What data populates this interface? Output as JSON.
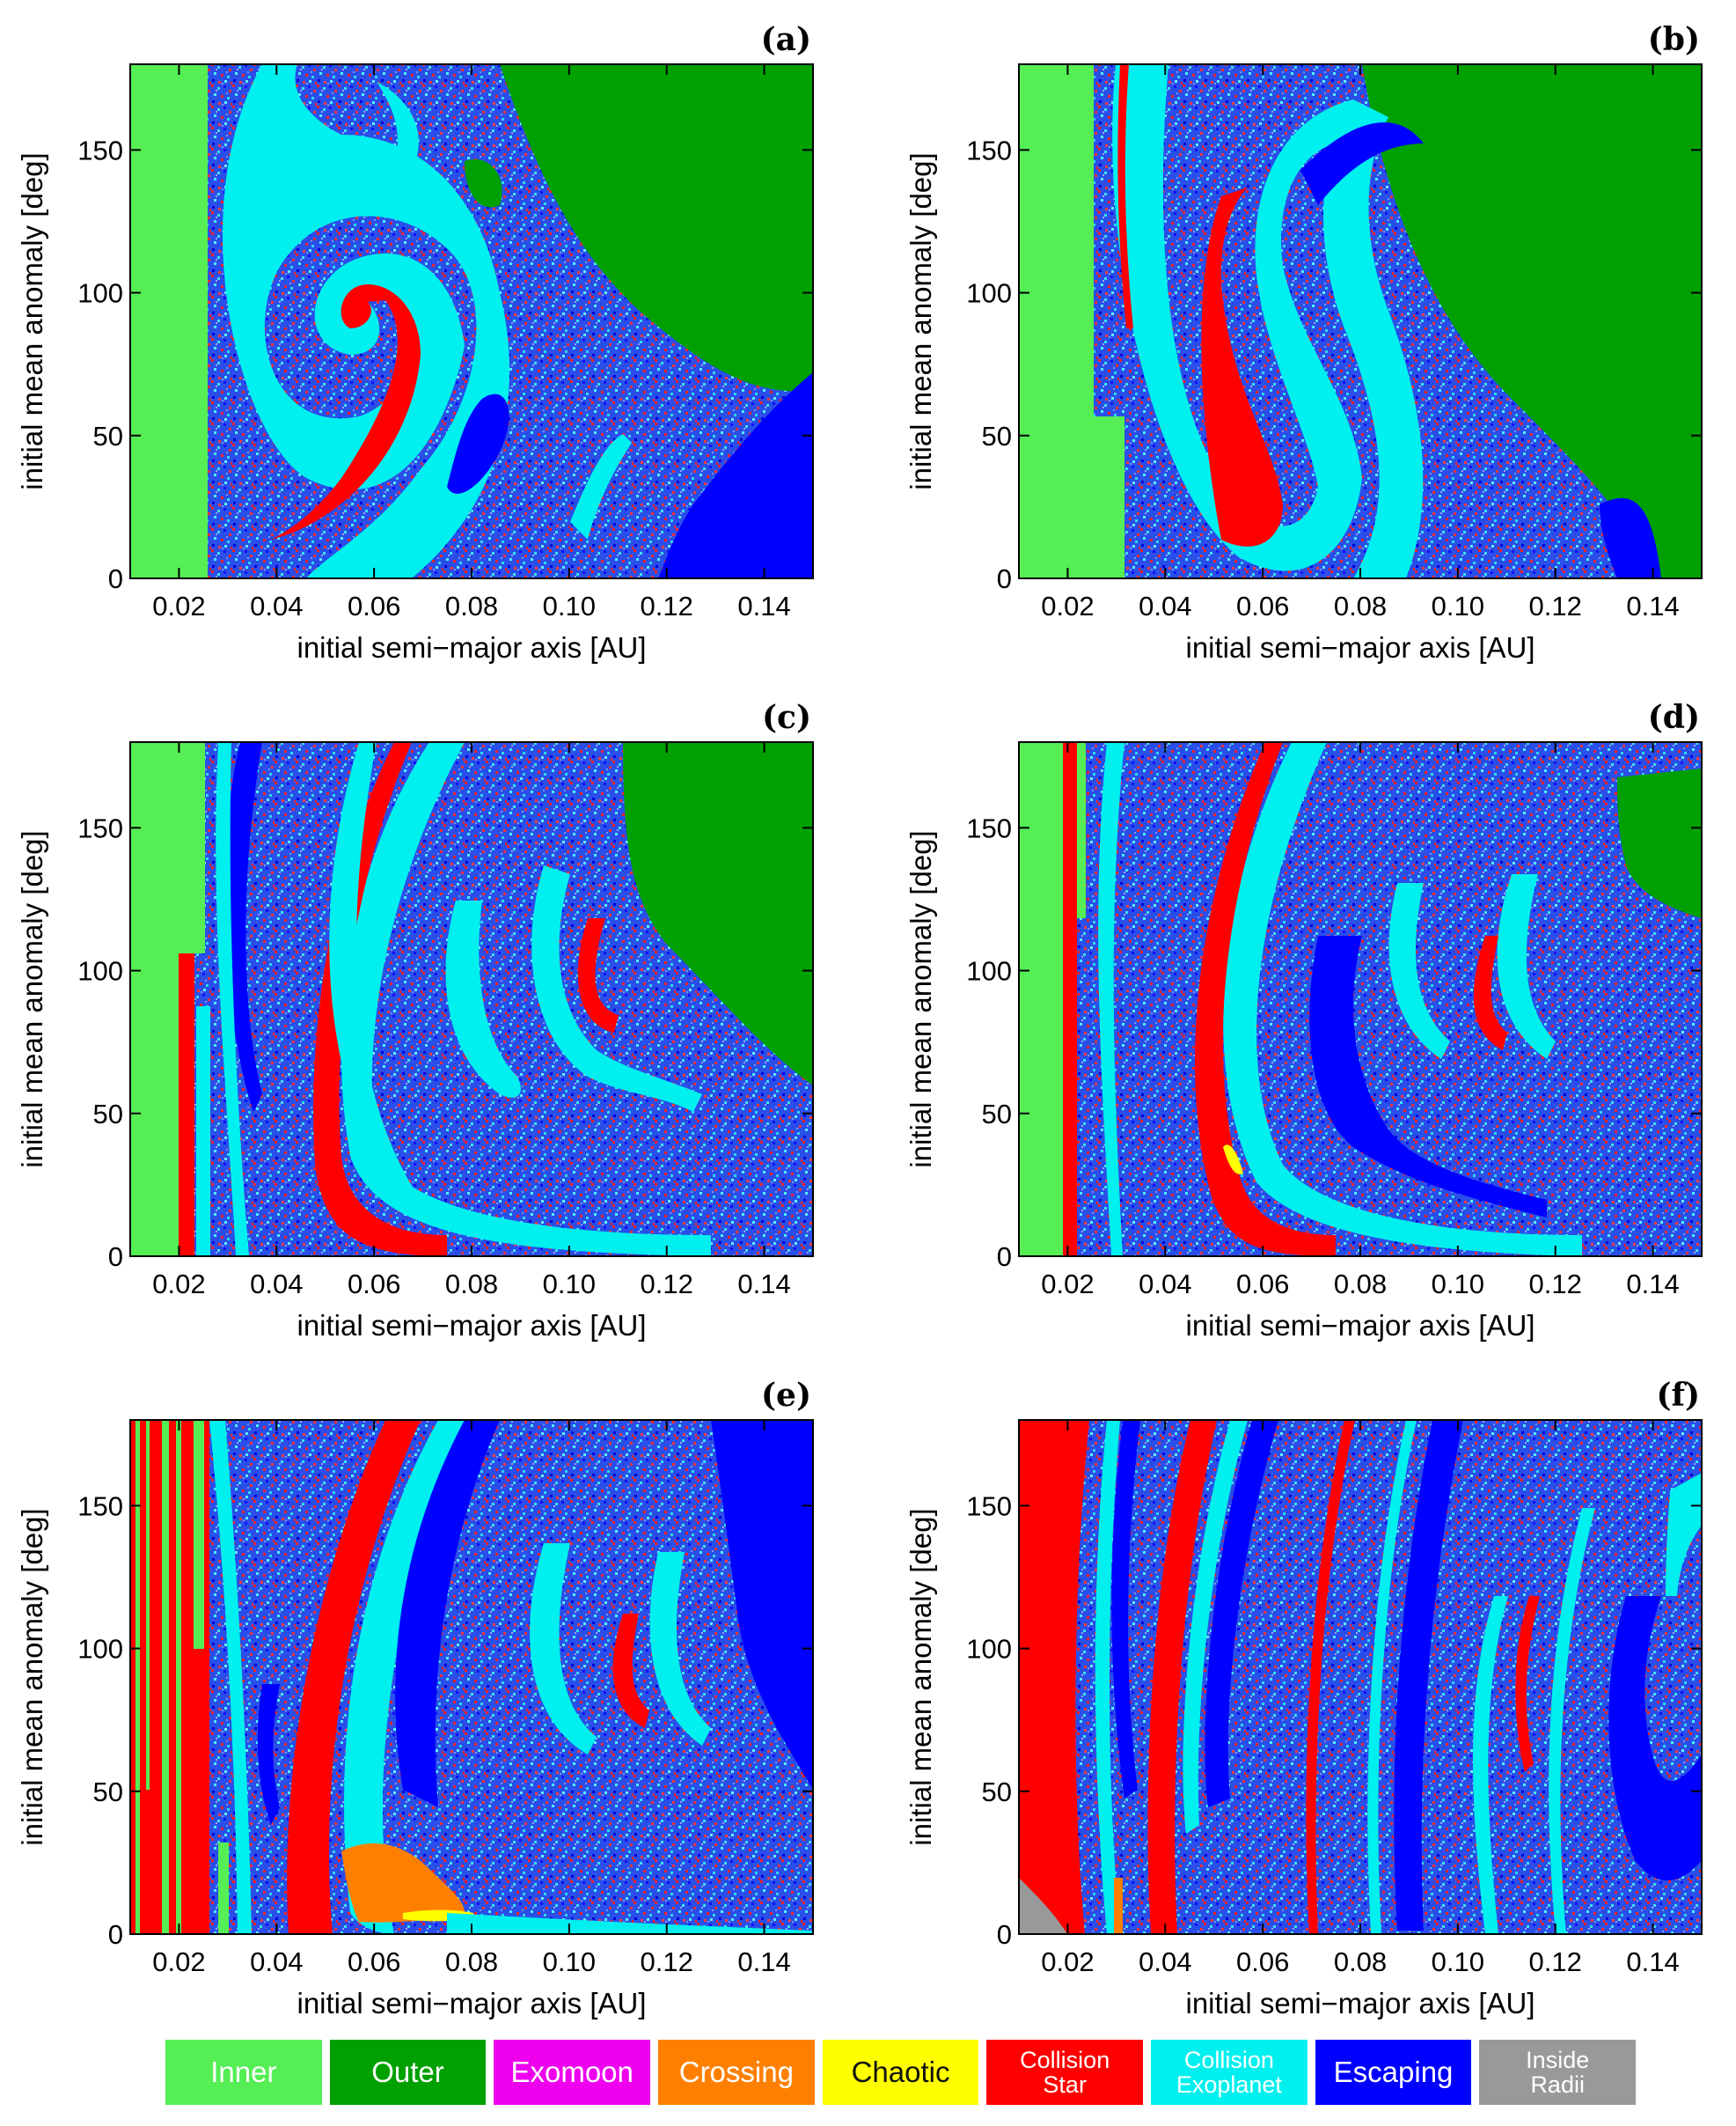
{
  "chart_data": [
    {
      "type": "heatmap",
      "panel": "(a)",
      "xlabel": "initial semi−major axis [AU]",
      "ylabel": "initial mean anomaly [deg]",
      "xlim": [
        0.01,
        0.15
      ],
      "ylim": [
        0,
        180
      ],
      "xticks": [
        "0.02",
        "0.04",
        "0.06",
        "0.08",
        "0.10",
        "0.12",
        "0.14"
      ],
      "yticks": [
        "0",
        "50",
        "100",
        "150"
      ]
    },
    {
      "type": "heatmap",
      "panel": "(b)",
      "xlabel": "initial semi−major axis [AU]",
      "ylabel": "initial mean anomaly [deg]",
      "xlim": [
        0.01,
        0.15
      ],
      "ylim": [
        0,
        180
      ],
      "xticks": [
        "0.02",
        "0.04",
        "0.06",
        "0.08",
        "0.10",
        "0.12",
        "0.14"
      ],
      "yticks": [
        "0",
        "50",
        "100",
        "150"
      ]
    },
    {
      "type": "heatmap",
      "panel": "(c)",
      "xlabel": "initial semi−major axis [AU]",
      "ylabel": "initial mean anomaly [deg]",
      "xlim": [
        0.01,
        0.15
      ],
      "ylim": [
        0,
        180
      ],
      "xticks": [
        "0.02",
        "0.04",
        "0.06",
        "0.08",
        "0.10",
        "0.12",
        "0.14"
      ],
      "yticks": [
        "0",
        "50",
        "100",
        "150"
      ]
    },
    {
      "type": "heatmap",
      "panel": "(d)",
      "xlabel": "initial semi−major axis [AU]",
      "ylabel": "initial mean anomaly [deg]",
      "xlim": [
        0.01,
        0.15
      ],
      "ylim": [
        0,
        180
      ],
      "xticks": [
        "0.02",
        "0.04",
        "0.06",
        "0.08",
        "0.10",
        "0.12",
        "0.14"
      ],
      "yticks": [
        "0",
        "50",
        "100",
        "150"
      ]
    },
    {
      "type": "heatmap",
      "panel": "(e)",
      "xlabel": "initial semi−major axis [AU]",
      "ylabel": "initial mean anomaly [deg]",
      "xlim": [
        0.01,
        0.15
      ],
      "ylim": [
        0,
        180
      ],
      "xticks": [
        "0.02",
        "0.04",
        "0.06",
        "0.08",
        "0.10",
        "0.12",
        "0.14"
      ],
      "yticks": [
        "0",
        "50",
        "100",
        "150"
      ]
    },
    {
      "type": "heatmap",
      "panel": "(f)",
      "xlabel": "initial semi−major axis [AU]",
      "ylabel": "initial mean anomaly [deg]",
      "xlim": [
        0.01,
        0.15
      ],
      "ylim": [
        0,
        180
      ],
      "xticks": [
        "0.02",
        "0.04",
        "0.06",
        "0.08",
        "0.10",
        "0.12",
        "0.14"
      ],
      "yticks": [
        "0",
        "50",
        "100",
        "150"
      ]
    }
  ],
  "legend": [
    {
      "label": "Inner",
      "color": "#55ee55"
    },
    {
      "label": "Outer",
      "color": "#00a000"
    },
    {
      "label": "Exomoon",
      "color": "#ee00ee"
    },
    {
      "label": "Crossing",
      "color": "#ff8000"
    },
    {
      "label": "Chaotic",
      "color": "#ffff00"
    },
    {
      "label": "Collision Star",
      "color": "#ff0000"
    },
    {
      "label": "Collision Exoplanet",
      "color": "#00f0f0"
    },
    {
      "label": "Escaping",
      "color": "#0000ff"
    },
    {
      "label": "Inside Radii",
      "color": "#999999"
    }
  ]
}
